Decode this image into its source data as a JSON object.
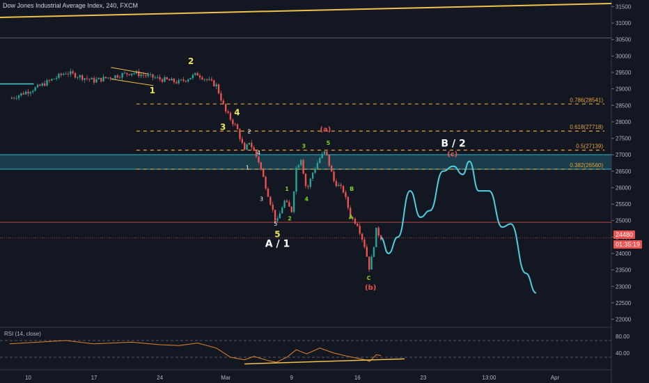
{
  "chart_data": {
    "type": "candlestick",
    "title": "Dow Jones Industrial Average Index, 240, FXCM",
    "x_tick_labels": [
      "10",
      "17",
      "24",
      "Mar",
      "9",
      "16",
      "23",
      "13:00",
      "Apr"
    ],
    "y_tick_labels": [
      "31500",
      "31000",
      "30500",
      "30000",
      "29500",
      "29000",
      "28500",
      "28000",
      "27500",
      "27000",
      "26500",
      "26000",
      "25500",
      "25000",
      "24500",
      "24000",
      "23500",
      "23000",
      "22500",
      "22000"
    ],
    "ylim": [
      21800,
      31700
    ],
    "last_price": "24480",
    "countdown": "01:35:19",
    "price_path": [
      {
        "d": 0,
        "v": 28700
      },
      {
        "d": 3,
        "v": 29050
      },
      {
        "d": 6,
        "v": 29500
      },
      {
        "d": 9,
        "v": 29250
      },
      {
        "d": 13,
        "v": 29500
      },
      {
        "d": 16,
        "v": 29300
      },
      {
        "d": 18,
        "v": 29200
      },
      {
        "d": 20,
        "v": 29450
      },
      {
        "d": 22,
        "v": 29100
      },
      {
        "d": 23,
        "v": 28300
      },
      {
        "d": 24.2,
        "v": 27800
      },
      {
        "d": 25,
        "v": 27100
      },
      {
        "d": 25.5,
        "v": 27400
      },
      {
        "d": 26.5,
        "v": 26800
      },
      {
        "d": 27.5,
        "v": 25800
      },
      {
        "d": 28.4,
        "v": 24900
      },
      {
        "d": 29.2,
        "v": 25600
      },
      {
        "d": 30,
        "v": 25300
      },
      {
        "d": 30.5,
        "v": 26600
      },
      {
        "d": 31,
        "v": 26900
      },
      {
        "d": 31.6,
        "v": 25900
      },
      {
        "d": 32.3,
        "v": 26500
      },
      {
        "d": 33,
        "v": 26900
      },
      {
        "d": 33.6,
        "v": 27100
      },
      {
        "d": 34.5,
        "v": 26200
      },
      {
        "d": 35.5,
        "v": 25900
      },
      {
        "d": 36.3,
        "v": 25100
      },
      {
        "d": 37,
        "v": 24900
      },
      {
        "d": 37.8,
        "v": 24200
      },
      {
        "d": 38.3,
        "v": 23500
      },
      {
        "d": 39,
        "v": 24700
      },
      {
        "d": 39.5,
        "v": 24480
      }
    ],
    "projection": [
      {
        "d": 39.5,
        "v": 24480
      },
      {
        "d": 40.3,
        "v": 24000
      },
      {
        "d": 41.3,
        "v": 24500
      },
      {
        "d": 42.6,
        "v": 25900
      },
      {
        "d": 43.7,
        "v": 25100
      },
      {
        "d": 44.7,
        "v": 25300
      },
      {
        "d": 46.1,
        "v": 26500
      },
      {
        "d": 47.2,
        "v": 26650
      },
      {
        "d": 48.2,
        "v": 26400
      },
      {
        "d": 48.9,
        "v": 26800
      },
      {
        "d": 49.9,
        "v": 25900
      },
      {
        "d": 51,
        "v": 25900
      },
      {
        "d": 52.4,
        "v": 24800
      },
      {
        "d": 53.3,
        "v": 24900
      },
      {
        "d": 54.9,
        "v": 23400
      },
      {
        "d": 56,
        "v": 22800
      }
    ],
    "fib_levels": [
      {
        "label": "0.786(28541)",
        "value": 28541
      },
      {
        "label": "0.618(27718)",
        "value": 27718
      },
      {
        "label": "0.5(27139)",
        "value": 27139
      },
      {
        "label": "0.382(26560)",
        "value": 26560
      }
    ],
    "zone": {
      "low": 26560,
      "high": 27000
    },
    "horizontal_lines": [
      30550,
      24950,
      24480
    ],
    "wave_labels": [
      {
        "text": "1",
        "d": 15.2,
        "v": 28870,
        "color": "#f0e35a"
      },
      {
        "text": "2",
        "d": 19.3,
        "v": 29750,
        "color": "#f0e35a"
      },
      {
        "text": "3",
        "d": 22.7,
        "v": 27750,
        "color": "#f0e35a"
      },
      {
        "text": "4",
        "d": 24.2,
        "v": 28200,
        "color": "#f0e35a"
      },
      {
        "text": "5",
        "d": 28.5,
        "v": 24500,
        "color": "#f0e35a"
      },
      {
        "text": "A / 1",
        "d": 28.5,
        "v": 24200,
        "color": "#ffffff",
        "big": true
      },
      {
        "text": "B / 2",
        "d": 47.2,
        "v": 27250,
        "color": "#ffffff",
        "big": true
      },
      {
        "text": "2",
        "d": 25.5,
        "v": 27650,
        "color": "#ffffff"
      },
      {
        "text": "4",
        "d": 26.5,
        "v": 27000,
        "color": "#ffffff"
      },
      {
        "text": "1",
        "d": 25.3,
        "v": 26550,
        "color": "#ffffff"
      },
      {
        "text": "3",
        "d": 26.8,
        "v": 25600,
        "color": "#ffffff"
      },
      {
        "text": "5",
        "d": 28.3,
        "v": 24850,
        "color": "#ffffff"
      },
      {
        "text": "1",
        "d": 29.5,
        "v": 25900,
        "color": "#7ed321"
      },
      {
        "text": "2",
        "d": 29.8,
        "v": 25000,
        "color": "#7ed321"
      },
      {
        "text": "3",
        "d": 31.3,
        "v": 27200,
        "color": "#7ed321"
      },
      {
        "text": "4",
        "d": 31.6,
        "v": 25600,
        "color": "#7ed321"
      },
      {
        "text": "5",
        "d": 33.9,
        "v": 27300,
        "color": "#7ed321"
      },
      {
        "text": "B",
        "d": 36.4,
        "v": 25900,
        "color": "#7ed321"
      },
      {
        "text": "A",
        "d": 36.3,
        "v": 25050,
        "color": "#7ed321"
      },
      {
        "text": "C",
        "d": 38.2,
        "v": 23200,
        "color": "#7ed321"
      },
      {
        "text": "(a)",
        "d": 33.6,
        "v": 27700,
        "color": "#ef5350"
      },
      {
        "text": "(b)",
        "d": 38.4,
        "v": 22900,
        "color": "#ef5350"
      },
      {
        "text": "(c)",
        "d": 47.1,
        "v": 26950,
        "color": "#ef5350"
      }
    ],
    "rsi": {
      "title": "RSI (14, close)",
      "y_tick_labels": [
        "80.00",
        "40.00"
      ],
      "upper": 70,
      "lower": 30,
      "values": [
        {
          "d": 0,
          "v": 62
        },
        {
          "d": 3,
          "v": 66
        },
        {
          "d": 6,
          "v": 70
        },
        {
          "d": 9,
          "v": 62
        },
        {
          "d": 13,
          "v": 66
        },
        {
          "d": 16,
          "v": 60
        },
        {
          "d": 18,
          "v": 58
        },
        {
          "d": 20,
          "v": 64
        },
        {
          "d": 22,
          "v": 52
        },
        {
          "d": 23.5,
          "v": 30
        },
        {
          "d": 25,
          "v": 24
        },
        {
          "d": 26,
          "v": 32
        },
        {
          "d": 27.5,
          "v": 22
        },
        {
          "d": 28.4,
          "v": 18
        },
        {
          "d": 29.5,
          "v": 30
        },
        {
          "d": 30.5,
          "v": 48
        },
        {
          "d": 31.6,
          "v": 38
        },
        {
          "d": 33,
          "v": 52
        },
        {
          "d": 34.5,
          "v": 40
        },
        {
          "d": 36,
          "v": 32
        },
        {
          "d": 37.8,
          "v": 24
        },
        {
          "d": 38.3,
          "v": 20
        },
        {
          "d": 39,
          "v": 36
        },
        {
          "d": 39.5,
          "v": 34
        }
      ]
    }
  }
}
